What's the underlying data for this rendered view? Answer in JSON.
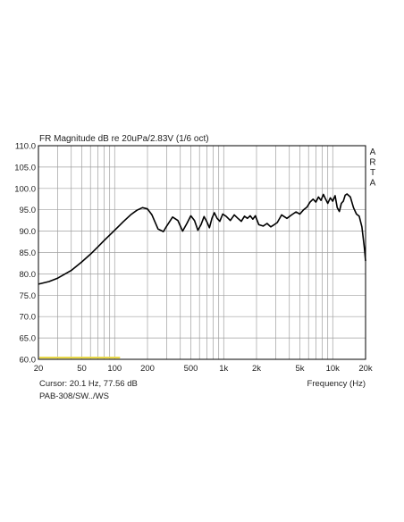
{
  "chart_data": {
    "type": "line",
    "title": "FR Magnitude dB re 20uPa/2.83V (1/6 oct)",
    "side_label": "ARTA",
    "xlabel": "Frequency (Hz)",
    "xscale": "log",
    "xlim": [
      20,
      20000
    ],
    "ylim": [
      60,
      110
    ],
    "grid": true,
    "x_ticks": [
      {
        "value": 20,
        "label": "20"
      },
      {
        "value": 50,
        "label": "50"
      },
      {
        "value": 100,
        "label": "100"
      },
      {
        "value": 200,
        "label": "200"
      },
      {
        "value": 500,
        "label": "500"
      },
      {
        "value": 1000,
        "label": "1k"
      },
      {
        "value": 2000,
        "label": "2k"
      },
      {
        "value": 5000,
        "label": "5k"
      },
      {
        "value": 10000,
        "label": "10k"
      },
      {
        "value": 20000,
        "label": "20k"
      }
    ],
    "y_ticks": [
      {
        "value": 110,
        "label": "110.0"
      },
      {
        "value": 105,
        "label": "105.0"
      },
      {
        "value": 100,
        "label": "100.0"
      },
      {
        "value": 95,
        "label": "95.0"
      },
      {
        "value": 90,
        "label": "90.0"
      },
      {
        "value": 85,
        "label": "85.0"
      },
      {
        "value": 80,
        "label": "80.0"
      },
      {
        "value": 75,
        "label": "75.0"
      },
      {
        "value": 70,
        "label": "70.0"
      },
      {
        "value": 65,
        "label": "65.0"
      },
      {
        "value": 60,
        "label": "60.0"
      }
    ],
    "series": [
      {
        "x": [
          20,
          25,
          30,
          40,
          50,
          60,
          70,
          80,
          100,
          120,
          140,
          160,
          180,
          200,
          220,
          250,
          280,
          300,
          340,
          380,
          420,
          460,
          500,
          540,
          580,
          620,
          660,
          700,
          740,
          780,
          820,
          870,
          920,
          980,
          1050,
          1150,
          1250,
          1350,
          1450,
          1550,
          1650,
          1750,
          1850,
          1950,
          2100,
          2300,
          2500,
          2700,
          2900,
          3100,
          3400,
          3800,
          4200,
          4600,
          5000,
          5400,
          5800,
          6200,
          6600,
          7000,
          7400,
          7800,
          8200,
          8600,
          9000,
          9500,
          10000,
          10500,
          11000,
          11500,
          12000,
          12500,
          13000,
          13500,
          14500,
          15500,
          16500,
          17500,
          18500,
          19500,
          20000
        ],
        "y": [
          77.6,
          78.2,
          79.0,
          80.8,
          82.8,
          84.6,
          86.3,
          87.8,
          90.2,
          92.2,
          93.8,
          94.9,
          95.5,
          95.2,
          93.8,
          90.5,
          89.9,
          91.2,
          93.3,
          92.5,
          90.0,
          91.8,
          93.6,
          92.5,
          90.2,
          91.5,
          93.4,
          92.2,
          90.8,
          93.0,
          94.3,
          93.0,
          92.3,
          94.0,
          93.5,
          92.5,
          93.8,
          93.0,
          92.3,
          93.5,
          93.0,
          93.6,
          92.8,
          93.6,
          91.5,
          91.2,
          91.8,
          91.0,
          91.5,
          92.0,
          93.8,
          93.0,
          93.8,
          94.5,
          94.0,
          95.0,
          95.6,
          96.8,
          97.5,
          96.8,
          98.0,
          97.2,
          98.6,
          97.5,
          96.5,
          97.8,
          97.0,
          98.3,
          95.5,
          94.6,
          96.5,
          97.0,
          98.4,
          98.7,
          98.0,
          95.5,
          94.0,
          93.5,
          91.0,
          86.0,
          83.0
        ]
      }
    ],
    "cursor_text": "Cursor: 20.1 Hz, 77.56 dB",
    "footer_text": "PAB-308/SW../WS",
    "colors": {
      "curve": "#000000",
      "grid": "#a0a0a0",
      "frame": "#000000",
      "highlight": "#e8d84a"
    }
  }
}
